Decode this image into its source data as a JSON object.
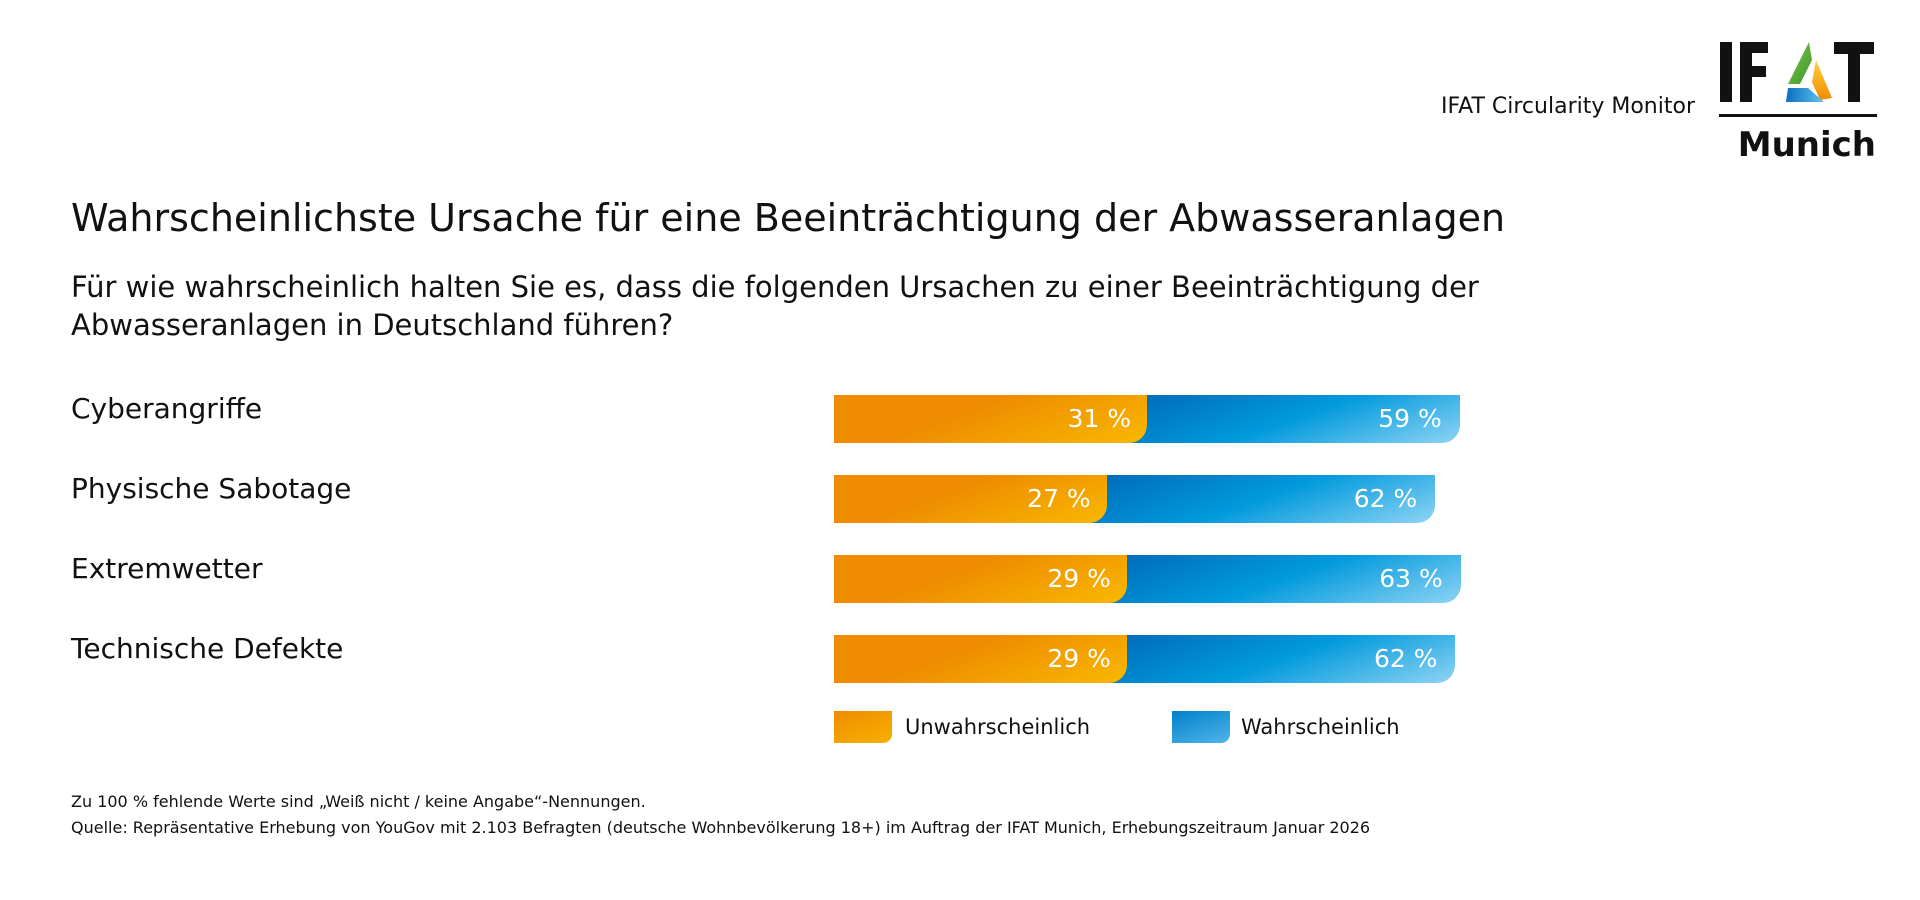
{
  "header": {
    "monitor": "IFAT Circularity Monitor",
    "logo_text": "IFAT Munich"
  },
  "colors": {
    "unlikely": "#ef8c00",
    "likely": "#0090d8"
  },
  "chart_data": {
    "type": "bar",
    "stacked": true,
    "orientation": "horizontal",
    "title": "Wahrscheinlichste Ursache für eine Beeinträchtigung der Abwasseranlagen",
    "subtitle": "Für wie wahrscheinlich halten Sie es, dass die folgenden Ursachen zu einer Beeinträchtigung der Abwasseranlagen in Deutschland führen?",
    "categories": [
      "Cyberangriffe",
      "Physische Sabotage",
      "Extremwetter",
      "Technische Defekte"
    ],
    "series": [
      {
        "name": "Unwahrscheinlich",
        "values": [
          31,
          27,
          29,
          29
        ],
        "labels": [
          "31 %",
          "27 %",
          "29 %",
          "29 %"
        ]
      },
      {
        "name": "Wahrscheinlich",
        "values": [
          59,
          62,
          63,
          62
        ],
        "labels": [
          "59 %",
          "62 %",
          "63 %",
          "62 %"
        ]
      }
    ],
    "legend_position": "bottom",
    "unit": "%"
  },
  "footnotes": [
    "Zu 100 % fehlende Werte sind „Weiß nicht / keine Angabe“-Nennungen.",
    "Quelle: Repräsentative Erhebung von YouGov mit 2.103 Befragten (deutsche Wohnbevölkerung 18+) im Auftrag der IFAT Munich, Erhebungszeitraum Januar 2026"
  ]
}
